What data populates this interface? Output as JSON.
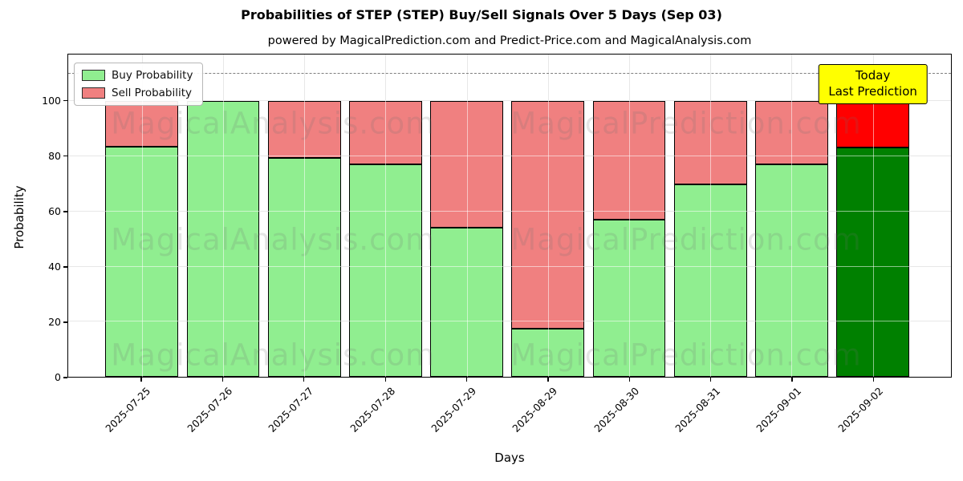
{
  "title": "Probabilities of STEP (STEP) Buy/Sell Signals Over 5 Days (Sep 03)",
  "subtitle": "powered by MagicalPrediction.com and Predict-Price.com and MagicalAnalysis.com",
  "legend": {
    "items": [
      {
        "label": "Buy Probability",
        "color": "#90EE90"
      },
      {
        "label": "Sell Probability",
        "color": "#F08080"
      }
    ]
  },
  "annotation": {
    "line1": "Today",
    "line2": "Last Prediction",
    "bg_color": "#FFFF00"
  },
  "watermarks": [
    "MagicalAnalysis.com",
    "MagicalPrediction.com"
  ],
  "chart_data": {
    "type": "bar",
    "stacked": true,
    "categories": [
      "2025-07-25",
      "2025-07-26",
      "2025-07-27",
      "2025-07-28",
      "2025-07-29",
      "2025-08-29",
      "2025-08-30",
      "2025-08-31",
      "2025-09-01",
      "2025-09-02"
    ],
    "series": [
      {
        "name": "Buy Probability",
        "color": "#90EE90",
        "values": [
          83.5,
          100,
          79.5,
          77,
          54,
          17.5,
          57,
          70,
          77,
          83.3
        ]
      },
      {
        "name": "Sell Probability",
        "color": "#F08080",
        "values": [
          16.5,
          0,
          20.5,
          23,
          46,
          82.5,
          43,
          30,
          23,
          16.7
        ]
      }
    ],
    "today_bar": {
      "index": 9,
      "buy_color": "#008000",
      "sell_color": "#FF0000"
    },
    "xlabel": "Days",
    "ylabel": "Probability",
    "yticks": [
      0,
      20,
      40,
      60,
      80,
      100
    ],
    "ylim": [
      0,
      117
    ],
    "dashed_line_y": 110,
    "grid": true,
    "legend_position": "upper left"
  }
}
